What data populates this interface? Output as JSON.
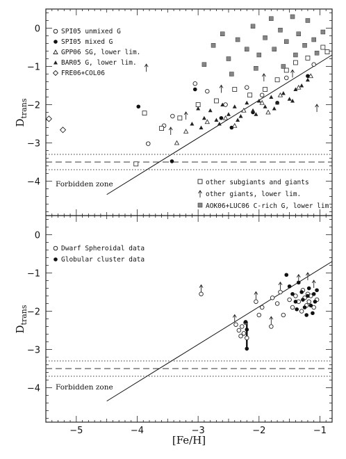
{
  "chart_data": [
    {
      "type": "scatter",
      "xlabel": "",
      "ylabel": "D",
      "ylabel_sub": "trans",
      "xlim": [
        -5.5,
        -0.8
      ],
      "ylim": [
        -4.9,
        0.5
      ],
      "xticks": [
        -5,
        -4,
        -3,
        -2,
        -1
      ],
      "yticks": [
        0,
        -1,
        -2,
        -3,
        -4
      ],
      "annotation": "Forbidden zone",
      "reference_lines": {
        "criterion_line": {
          "x": [
            -4.5,
            -0.8
          ],
          "y": [
            -4.35,
            -0.7
          ]
        },
        "dashed": -3.5,
        "dotted": [
          -3.3,
          -3.7
        ]
      },
      "legend_top_left": [
        {
          "symbol": "circle-open",
          "label": "SPI05 unmixed G"
        },
        {
          "symbol": "circle-filled",
          "label": "SPI05 mixed G"
        },
        {
          "symbol": "triangle-open",
          "label": "GPP06 SG, lower lim."
        },
        {
          "symbol": "triangle-filled",
          "label": "BAR05 G, lower lim."
        },
        {
          "symbol": "diamond-open",
          "label": "FRE06+COL06"
        }
      ],
      "legend_bottom_right": [
        {
          "symbol": "square-open",
          "label": "other subgiants and giants"
        },
        {
          "symbol": "arrow-up",
          "label": "other giants, lower lim."
        },
        {
          "symbol": "square-gray",
          "label": "AOK06+LUC06 C-rich G, lower lim."
        }
      ],
      "series": [
        {
          "symbol": "diamond-open",
          "points": [
            [
              -5.45,
              -2.37
            ],
            [
              -5.22,
              -2.66
            ]
          ]
        },
        {
          "symbol": "circle-filled",
          "points": [
            [
              -3.98,
              -2.05
            ],
            [
              -3.43,
              -3.48
            ],
            [
              -3.05,
              -1.6
            ],
            [
              -2.62,
              -2.35
            ],
            [
              -2.45,
              -2.6
            ],
            [
              -2.1,
              -2.2
            ],
            [
              -1.7,
              -1.95
            ],
            [
              -1.2,
              -1.25
            ]
          ]
        },
        {
          "symbol": "circle-open",
          "points": [
            [
              -3.82,
              -3.02
            ],
            [
              -3.56,
              -2.55
            ],
            [
              -3.42,
              -2.3
            ],
            [
              -3.05,
              -1.45
            ],
            [
              -2.85,
              -1.65
            ],
            [
              -2.55,
              -2.0
            ],
            [
              -2.2,
              -1.55
            ],
            [
              -1.95,
              -1.75
            ],
            [
              -1.55,
              -1.3
            ],
            [
              -1.1,
              -0.95
            ]
          ]
        },
        {
          "symbol": "square-open",
          "points": [
            [
              -4.02,
              -3.55
            ],
            [
              -3.88,
              -2.22
            ],
            [
              -3.6,
              -2.62
            ],
            [
              -3.3,
              -2.35
            ],
            [
              -3.0,
              -2.0
            ],
            [
              -2.7,
              -1.9
            ],
            [
              -2.4,
              -1.6
            ],
            [
              -2.15,
              -1.75
            ],
            [
              -1.9,
              -1.6
            ],
            [
              -1.7,
              -1.35
            ],
            [
              -1.55,
              -1.1
            ],
            [
              -1.4,
              -0.9
            ],
            [
              -1.2,
              -0.78
            ],
            [
              -0.95,
              -0.5
            ],
            [
              -0.88,
              -0.62
            ]
          ]
        },
        {
          "symbol": "arrow-up",
          "points": [
            [
              -3.85,
              -1.05
            ],
            [
              -3.45,
              -2.7
            ],
            [
              -3.2,
              -2.3
            ],
            [
              -2.62,
              -1.6
            ],
            [
              -1.92,
              -1.3
            ],
            [
              -1.45,
              -1.2
            ],
            [
              -1.05,
              -2.1
            ]
          ]
        },
        {
          "symbol": "square-gray",
          "points": [
            [
              -2.9,
              -0.95
            ],
            [
              -2.75,
              -0.45
            ],
            [
              -2.6,
              -0.15
            ],
            [
              -2.5,
              -0.8
            ],
            [
              -2.35,
              -0.3
            ],
            [
              -2.2,
              -0.55
            ],
            [
              -2.1,
              0.05
            ],
            [
              -2.0,
              -0.7
            ],
            [
              -1.9,
              -0.25
            ],
            [
              -1.8,
              0.25
            ],
            [
              -1.75,
              -0.55
            ],
            [
              -1.65,
              -0.05
            ],
            [
              -1.6,
              -1.0
            ],
            [
              -1.55,
              -0.35
            ],
            [
              -1.45,
              0.3
            ],
            [
              -1.4,
              -0.7
            ],
            [
              -1.35,
              -0.15
            ],
            [
              -1.25,
              -0.45
            ],
            [
              -1.2,
              0.2
            ],
            [
              -1.1,
              -0.3
            ],
            [
              -1.05,
              -0.65
            ],
            [
              -0.95,
              -0.1
            ],
            [
              -2.45,
              -1.2
            ],
            [
              -2.05,
              -1.05
            ]
          ]
        },
        {
          "symbol": "triangle-filled",
          "points": [
            [
              -3.1,
              -2.5
            ],
            [
              -3.0,
              -2.1
            ],
            [
              -2.9,
              -2.35
            ],
            [
              -2.8,
              -2.15
            ],
            [
              -2.7,
              -2.4
            ],
            [
              -2.6,
              -2.0
            ],
            [
              -2.5,
              -2.25
            ],
            [
              -2.4,
              -2.05
            ],
            [
              -2.3,
              -2.3
            ],
            [
              -2.2,
              -1.95
            ],
            [
              -2.1,
              -2.15
            ],
            [
              -2.0,
              -1.9
            ],
            [
              -1.9,
              -2.05
            ],
            [
              -1.8,
              -1.8
            ],
            [
              -1.7,
              -1.95
            ],
            [
              -1.6,
              -1.7
            ],
            [
              -1.5,
              -1.85
            ],
            [
              -1.4,
              -1.6
            ],
            [
              -1.3,
              -1.5
            ],
            [
              -1.2,
              -1.35
            ],
            [
              -2.95,
              -2.6
            ],
            [
              -2.65,
              -2.5
            ],
            [
              -2.35,
              -2.4
            ],
            [
              -2.05,
              -2.25
            ],
            [
              -1.75,
              -2.1
            ],
            [
              -1.45,
              -1.9
            ]
          ]
        },
        {
          "symbol": "triangle-open",
          "points": [
            [
              -3.2,
              -2.7
            ],
            [
              -2.85,
              -2.45
            ],
            [
              -2.55,
              -2.35
            ],
            [
              -2.25,
              -2.15
            ],
            [
              -1.95,
              -1.95
            ],
            [
              -1.65,
              -1.75
            ],
            [
              -1.35,
              -1.55
            ],
            [
              -1.15,
              -1.25
            ],
            [
              -3.35,
              -3.0
            ],
            [
              -2.4,
              -2.55
            ],
            [
              -1.85,
              -2.2
            ]
          ]
        }
      ]
    },
    {
      "type": "scatter",
      "xlabel": "[Fe/H]",
      "ylabel": "D",
      "ylabel_sub": "trans",
      "xlim": [
        -5.5,
        -0.8
      ],
      "ylim": [
        -4.9,
        0.5
      ],
      "xticks": [
        -5,
        -4,
        -3,
        -2,
        -1
      ],
      "yticks": [
        0,
        -1,
        -2,
        -3,
        -4
      ],
      "annotation": "Forbidden zone",
      "reference_lines": {
        "criterion_line": {
          "x": [
            -4.5,
            -0.8
          ],
          "y": [
            -4.35,
            -0.7
          ]
        },
        "dashed": -3.5,
        "dotted": [
          -3.3,
          -3.7
        ]
      },
      "legend_top_left": [
        {
          "symbol": "circle-open",
          "label": "Dwarf Spheroidal data"
        },
        {
          "symbol": "circle-filled",
          "label": "Globular cluster data"
        }
      ],
      "series": [
        {
          "symbol": "circle-open",
          "points": [
            [
              -2.95,
              -1.55
            ],
            [
              -2.38,
              -2.35
            ],
            [
              -2.33,
              -2.5
            ],
            [
              -2.3,
              -2.65
            ],
            [
              -2.28,
              -2.4
            ],
            [
              -2.25,
              -2.58
            ],
            [
              -2.22,
              -2.3
            ],
            [
              -2.2,
              -2.7
            ],
            [
              -2.05,
              -1.75
            ],
            [
              -2.0,
              -2.1
            ],
            [
              -1.95,
              -1.9
            ],
            [
              -1.8,
              -2.4
            ],
            [
              -1.78,
              -1.65
            ],
            [
              -1.7,
              -1.8
            ],
            [
              -1.65,
              -1.5
            ],
            [
              -1.6,
              -2.1
            ],
            [
              -1.5,
              -1.7
            ],
            [
              -1.45,
              -1.9
            ],
            [
              -1.4,
              -1.6
            ],
            [
              -1.35,
              -1.75
            ],
            [
              -1.3,
              -2.0
            ],
            [
              -1.28,
              -1.45
            ],
            [
              -1.25,
              -1.65
            ],
            [
              -1.22,
              -1.85
            ],
            [
              -1.2,
              -1.55
            ],
            [
              -1.18,
              -1.75
            ],
            [
              -1.15,
              -1.6
            ],
            [
              -1.1,
              -1.9
            ],
            [
              -1.05,
              -1.7
            ]
          ]
        },
        {
          "symbol": "circle-filled",
          "points": [
            [
              -2.22,
              -2.28
            ],
            [
              -2.2,
              -2.48
            ],
            [
              -2.2,
              -2.98
            ],
            [
              -1.55,
              -1.05
            ],
            [
              -1.5,
              -1.35
            ],
            [
              -1.45,
              -1.55
            ],
            [
              -1.4,
              -1.75
            ],
            [
              -1.38,
              -1.95
            ],
            [
              -1.35,
              -1.25
            ],
            [
              -1.3,
              -1.5
            ],
            [
              -1.28,
              -1.7
            ],
            [
              -1.25,
              -1.9
            ],
            [
              -1.22,
              -2.1
            ],
            [
              -1.2,
              -1.6
            ],
            [
              -1.18,
              -1.4
            ],
            [
              -1.15,
              -1.85
            ],
            [
              -1.12,
              -2.05
            ],
            [
              -1.1,
              -1.55
            ],
            [
              -1.08,
              -1.75
            ],
            [
              -1.05,
              -1.45
            ]
          ]
        },
        {
          "symbol": "arrow-up",
          "points": [
            [
              -2.95,
              -1.42
            ],
            [
              -2.4,
              -2.2
            ],
            [
              -2.05,
              -1.6
            ],
            [
              -1.8,
              -2.25
            ],
            [
              -1.65,
              -1.35
            ],
            [
              -1.35,
              -1.15
            ],
            [
              -1.2,
              -1.1
            ],
            [
              -1.1,
              -1.3
            ]
          ]
        }
      ],
      "segments": [
        {
          "x": -2.2,
          "y1": -2.3,
          "y2": -3.0
        }
      ]
    }
  ]
}
